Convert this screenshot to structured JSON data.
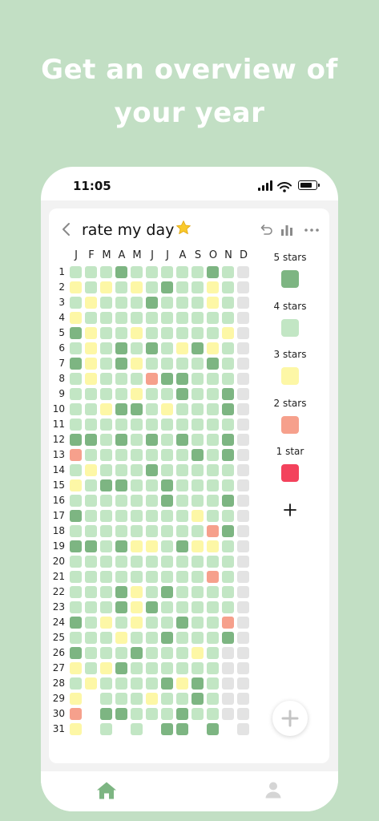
{
  "headline": {
    "line1": "Get an overview of",
    "line2": "your year"
  },
  "status_bar": {
    "time": "11:05",
    "icons": [
      "signal-icon",
      "wifi-icon",
      "battery-icon"
    ]
  },
  "header": {
    "title": "rate my day",
    "title_emoji": "⭐",
    "actions": [
      "undo-icon",
      "stats-icon",
      "more-icon"
    ]
  },
  "months": [
    "J",
    "F",
    "M",
    "A",
    "M",
    "J",
    "J",
    "A",
    "S",
    "O",
    "N",
    "D"
  ],
  "days": [
    "1",
    "2",
    "3",
    "4",
    "5",
    "6",
    "7",
    "8",
    "9",
    "10",
    "11",
    "12",
    "13",
    "14",
    "15",
    "16",
    "17",
    "18",
    "19",
    "20",
    "21",
    "22",
    "23",
    "24",
    "25",
    "26",
    "27",
    "28",
    "29",
    "30",
    "31"
  ],
  "grid": {
    "ratings_by_day": [
      "444544444540",
      "343434544340",
      "434445444340",
      "344444444440",
      "534434444430",
      "434545435340",
      "534534444540",
      "434442554440",
      "444434454450",
      "443554344450",
      "444444444440",
      "554545454450",
      "244444445450",
      "434445444440",
      "345544544440",
      "444444544450",
      "544444443440",
      "444444444250",
      "554533453340",
      "444444444440",
      "444444444240",
      "444534544440",
      "444535444440",
      "543434454420",
      "444344544450",
      "544454443400",
      "343544444400",
      "434444535400",
      "3-4443445400",
      "2-5544454400",
      "3-4-4-55-5-0"
    ],
    "legend_key": {
      "5": "5 stars",
      "4": "4 stars",
      "3": "3 stars",
      "2": "2 stars",
      "1": "1 star",
      "0": "future",
      "-": "no date"
    }
  },
  "legend": [
    {
      "label": "5 stars",
      "color": "#7db582"
    },
    {
      "label": "4 stars",
      "color": "#c2e6c4"
    },
    {
      "label": "3 stars",
      "color": "#fdf7a6"
    },
    {
      "label": "2 stars",
      "color": "#f6a08c"
    },
    {
      "label": "1 star",
      "color": "#f3425c"
    }
  ],
  "colors": {
    "background": "#c2dfc4",
    "future": "#e3e3e3"
  },
  "tab_bar": {
    "items": [
      "home-icon",
      "profile-icon"
    ],
    "active": "home-icon"
  }
}
